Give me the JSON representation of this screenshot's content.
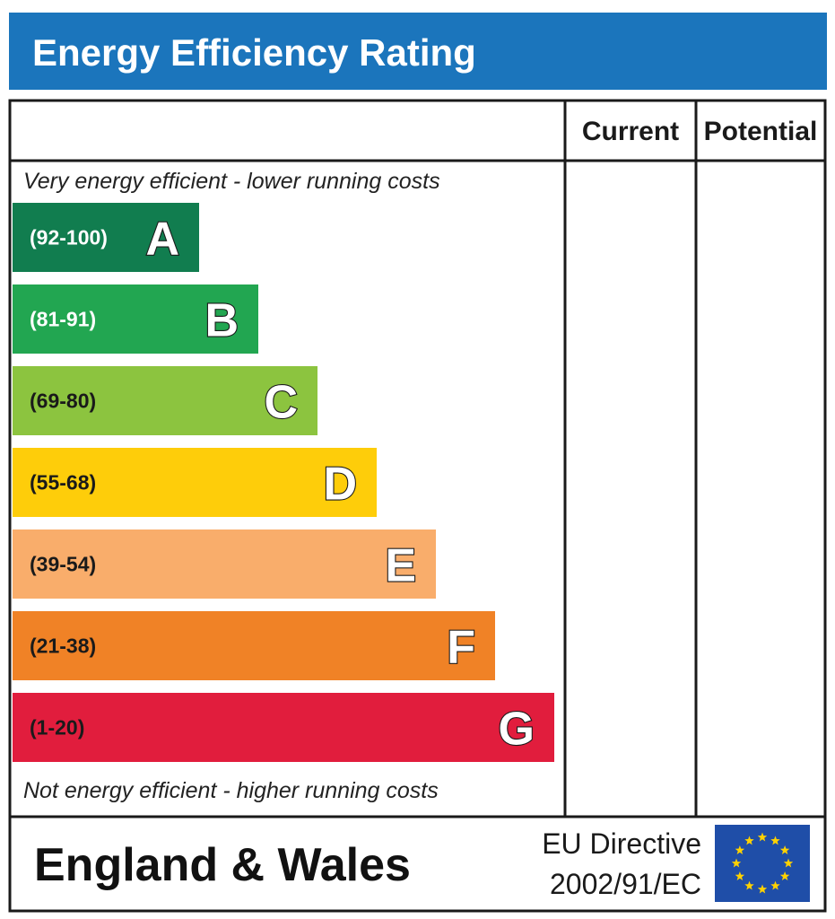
{
  "chart_data": {
    "type": "bar",
    "title": "Energy Efficiency Rating",
    "columns": [
      "Current",
      "Potential"
    ],
    "top_note": "Very energy efficient - lower running costs",
    "bottom_note": "Not energy efficient - higher running costs",
    "bands": [
      {
        "letter": "A",
        "range": "(92-100)",
        "min": 92,
        "max": 100,
        "color": "#117d4f",
        "text_color": "#ffffff"
      },
      {
        "letter": "B",
        "range": "(81-91)",
        "min": 81,
        "max": 91,
        "color": "#22a651",
        "text_color": "#ffffff"
      },
      {
        "letter": "C",
        "range": "(69-80)",
        "min": 69,
        "max": 80,
        "color": "#8cc43f",
        "text_color": "#1a1a1a"
      },
      {
        "letter": "D",
        "range": "(55-68)",
        "min": 55,
        "max": 68,
        "color": "#fecd0a",
        "text_color": "#1a1a1a"
      },
      {
        "letter": "E",
        "range": "(39-54)",
        "min": 39,
        "max": 54,
        "color": "#f9ad6b",
        "text_color": "#1a1a1a"
      },
      {
        "letter": "F",
        "range": "(21-38)",
        "min": 21,
        "max": 38,
        "color": "#f08226",
        "text_color": "#1a1a1a"
      },
      {
        "letter": "G",
        "range": "(1-20)",
        "min": 1,
        "max": 20,
        "color": "#e11d3d",
        "text_color": "#1a1a1a"
      }
    ],
    "current": null,
    "potential": null
  },
  "footer": {
    "region": "England & Wales",
    "directive_line1": "EU Directive",
    "directive_line2": "2002/91/EC"
  },
  "colors": {
    "header_blue": "#1b75bc",
    "eu_blue": "#1f4ea8",
    "eu_star": "#ffd200",
    "border": "#1a1a1a"
  },
  "icons": {
    "eu_flag": "eu-flag-icon"
  }
}
